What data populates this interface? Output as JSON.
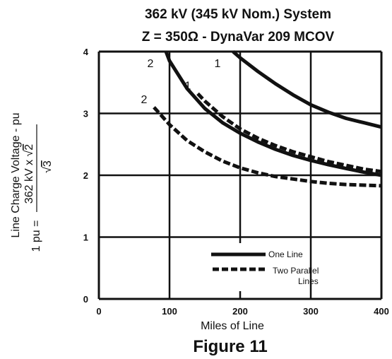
{
  "chart_data": {
    "type": "line",
    "title": "362 kV (345 kV Nom.) System",
    "subtitle": "Z = 350Ω - DynaVar 209 MCOV",
    "xlabel": "Miles of Line",
    "ylabel": "Line Charge Voltage - pu",
    "ylabel_formula": {
      "lhs": "1 pu = ",
      "numerator_main": "362 kV x √",
      "numerator_radicand": "2",
      "denominator_symbol": "√",
      "denominator_radicand": "3"
    },
    "caption": "Figure 11",
    "xlim": [
      0,
      400
    ],
    "ylim": [
      0,
      4
    ],
    "x_ticks": [
      0,
      100,
      200,
      300,
      400
    ],
    "y_ticks": [
      0,
      1,
      2,
      3,
      4
    ],
    "x_tick_labels": [
      "0",
      "100",
      "200",
      "300",
      "400"
    ],
    "y_tick_labels": [
      "0",
      "1",
      "2",
      "3",
      "4"
    ],
    "grid": true,
    "legend_placement": "bottom-right",
    "legend": [
      {
        "label": "One Line",
        "style": "solid"
      },
      {
        "label_lines": [
          "Two Parallel",
          "Lines"
        ],
        "style": "dashed"
      }
    ],
    "series": [
      {
        "label": "1",
        "style": "solid",
        "x": [
          190,
          200,
          225,
          250,
          275,
          300,
          325,
          350,
          375,
          400
        ],
        "y": [
          4.0,
          3.9,
          3.68,
          3.48,
          3.3,
          3.14,
          3.02,
          2.92,
          2.85,
          2.78
        ]
      },
      {
        "label": "1",
        "style": "dashed",
        "x": [
          140,
          150,
          175,
          200,
          225,
          250,
          275,
          300,
          325,
          350,
          375,
          400
        ],
        "y": [
          3.32,
          3.2,
          2.95,
          2.75,
          2.6,
          2.48,
          2.38,
          2.3,
          2.22,
          2.16,
          2.1,
          2.06
        ]
      },
      {
        "label": "2",
        "style": "solid",
        "x": [
          95,
          100,
          125,
          150,
          175,
          200,
          225,
          250,
          275,
          300,
          325,
          350,
          375,
          400
        ],
        "y": [
          4.0,
          3.85,
          3.4,
          3.08,
          2.85,
          2.68,
          2.54,
          2.42,
          2.32,
          2.24,
          2.17,
          2.11,
          2.05,
          2.0
        ]
      },
      {
        "label": "2",
        "style": "dashed",
        "x": [
          78,
          100,
          125,
          150,
          175,
          200,
          225,
          250,
          275,
          300,
          325,
          350,
          375,
          400
        ],
        "y": [
          3.1,
          2.82,
          2.56,
          2.38,
          2.23,
          2.12,
          2.04,
          1.98,
          1.94,
          1.9,
          1.87,
          1.85,
          1.84,
          1.83
        ]
      }
    ]
  }
}
